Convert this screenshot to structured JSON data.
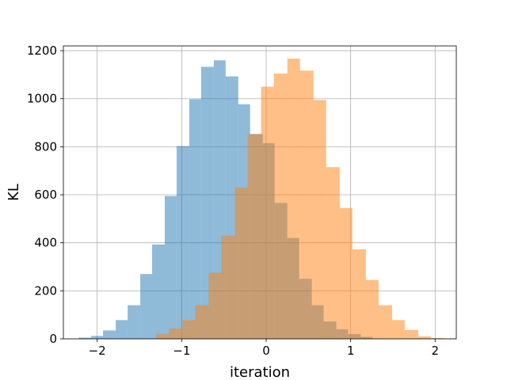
{
  "chart_data": {
    "type": "bar",
    "title": "",
    "xlabel": "iteration",
    "ylabel": "KL",
    "xlim": [
      -2.4,
      2.25
    ],
    "ylim": [
      0,
      1220
    ],
    "xticks": [
      -2,
      -1,
      0,
      1,
      2
    ],
    "xtick_labels": [
      "−2",
      "−1",
      "0",
      "1",
      "2"
    ],
    "yticks": [
      0,
      200,
      400,
      600,
      800,
      1000,
      1200
    ],
    "ytick_labels": [
      "0",
      "200",
      "400",
      "600",
      "800",
      "1000",
      "1200"
    ],
    "grid": true,
    "legend": "none",
    "series": [
      {
        "color": "#1f77b4",
        "opacity": 0.5,
        "bins": [
          {
            "x0": -2.22,
            "x1": -2.07,
            "value": 5
          },
          {
            "x0": -2.07,
            "x1": -1.93,
            "value": 12
          },
          {
            "x0": -1.93,
            "x1": -1.78,
            "value": 35
          },
          {
            "x0": -1.78,
            "x1": -1.64,
            "value": 78
          },
          {
            "x0": -1.64,
            "x1": -1.49,
            "value": 140
          },
          {
            "x0": -1.49,
            "x1": -1.35,
            "value": 270
          },
          {
            "x0": -1.35,
            "x1": -1.2,
            "value": 393
          },
          {
            "x0": -1.2,
            "x1": -1.06,
            "value": 595
          },
          {
            "x0": -1.06,
            "x1": -0.91,
            "value": 803
          },
          {
            "x0": -0.91,
            "x1": -0.77,
            "value": 998
          },
          {
            "x0": -0.77,
            "x1": -0.62,
            "value": 1133
          },
          {
            "x0": -0.62,
            "x1": -0.48,
            "value": 1160
          },
          {
            "x0": -0.48,
            "x1": -0.33,
            "value": 1093
          },
          {
            "x0": -0.33,
            "x1": -0.19,
            "value": 977
          },
          {
            "x0": -0.19,
            "x1": -0.04,
            "value": 853
          },
          {
            "x0": -0.04,
            "x1": 0.1,
            "value": 815
          },
          {
            "x0": 0.1,
            "x1": 0.25,
            "value": 566
          },
          {
            "x0": 0.25,
            "x1": 0.39,
            "value": 420
          },
          {
            "x0": 0.39,
            "x1": 0.54,
            "value": 250
          },
          {
            "x0": 0.54,
            "x1": 0.68,
            "value": 140
          },
          {
            "x0": 0.68,
            "x1": 0.83,
            "value": 72
          },
          {
            "x0": 0.83,
            "x1": 0.97,
            "value": 40
          },
          {
            "x0": 0.97,
            "x1": 1.12,
            "value": 20
          },
          {
            "x0": 1.12,
            "x1": 1.26,
            "value": 8
          }
        ]
      },
      {
        "color": "#ff7f0e",
        "opacity": 0.5,
        "bins": [
          {
            "x0": -1.3,
            "x1": -1.15,
            "value": 20
          },
          {
            "x0": -1.15,
            "x1": -0.99,
            "value": 43
          },
          {
            "x0": -0.99,
            "x1": -0.84,
            "value": 78
          },
          {
            "x0": -0.84,
            "x1": -0.68,
            "value": 140
          },
          {
            "x0": -0.68,
            "x1": -0.53,
            "value": 275
          },
          {
            "x0": -0.53,
            "x1": -0.37,
            "value": 430
          },
          {
            "x0": -0.37,
            "x1": -0.22,
            "value": 630
          },
          {
            "x0": -0.22,
            "x1": -0.06,
            "value": 853
          },
          {
            "x0": -0.06,
            "x1": 0.09,
            "value": 1050
          },
          {
            "x0": 0.09,
            "x1": 0.25,
            "value": 1105
          },
          {
            "x0": 0.25,
            "x1": 0.4,
            "value": 1167
          },
          {
            "x0": 0.4,
            "x1": 0.56,
            "value": 1117
          },
          {
            "x0": 0.56,
            "x1": 0.71,
            "value": 995
          },
          {
            "x0": 0.71,
            "x1": 0.87,
            "value": 715
          },
          {
            "x0": 0.87,
            "x1": 1.02,
            "value": 545
          },
          {
            "x0": 1.02,
            "x1": 1.18,
            "value": 373
          },
          {
            "x0": 1.18,
            "x1": 1.33,
            "value": 245
          },
          {
            "x0": 1.33,
            "x1": 1.49,
            "value": 140
          },
          {
            "x0": 1.49,
            "x1": 1.64,
            "value": 78
          },
          {
            "x0": 1.64,
            "x1": 1.8,
            "value": 37
          },
          {
            "x0": 1.8,
            "x1": 1.95,
            "value": 10
          },
          {
            "x0": 1.95,
            "x1": 2.11,
            "value": 3
          }
        ]
      }
    ]
  }
}
